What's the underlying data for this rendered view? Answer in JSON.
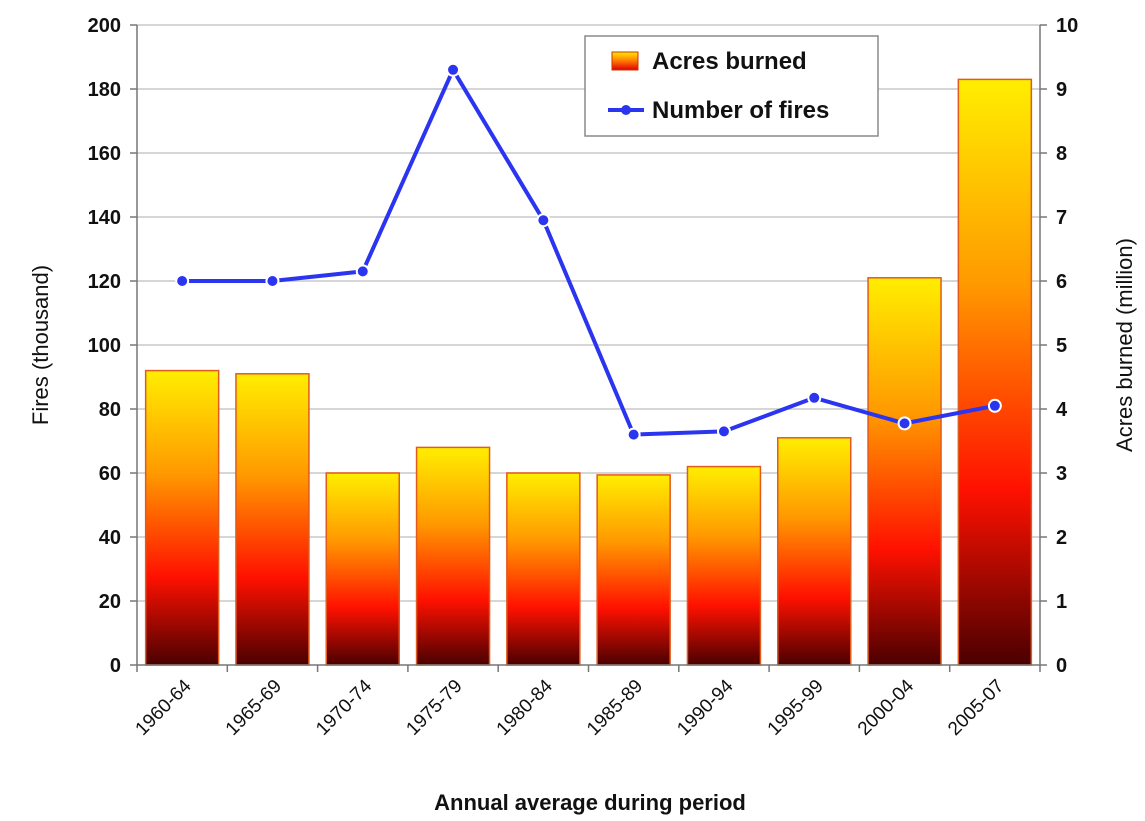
{
  "chart_data": {
    "type": "bar",
    "xlabel": "Annual average during period",
    "ylabel": "Fires (thousand)",
    "ylabel_right": "Acres burned (million)",
    "categories": [
      "1960-64",
      "1965-69",
      "1970-74",
      "1975-79",
      "1980-84",
      "1985-89",
      "1990-94",
      "1995-99",
      "2000-04",
      "2005-07"
    ],
    "ylim": [
      0,
      200
    ],
    "ylim_right": [
      0,
      10
    ],
    "yticks": [
      "0",
      "20",
      "40",
      "60",
      "80",
      "100",
      "120",
      "140",
      "160",
      "180",
      "200"
    ],
    "yticks_right": [
      "0",
      "1",
      "2",
      "3",
      "4",
      "5",
      "6",
      "7",
      "8",
      "9",
      "10"
    ],
    "grid": true,
    "legend_position": "top-right",
    "series": [
      {
        "name": "Acres burned",
        "type": "bar",
        "axis": "right",
        "values": [
          4.6,
          4.55,
          3.0,
          3.4,
          3.0,
          2.97,
          3.1,
          3.55,
          6.05,
          9.15
        ],
        "colors": [
          "#ffee00",
          "#ff9900",
          "#ff1100",
          "#4a0000"
        ]
      },
      {
        "name": "Number of fires",
        "type": "line",
        "axis": "left",
        "values": [
          120,
          120,
          123,
          186,
          139,
          72,
          73,
          83.5,
          75.5,
          81
        ],
        "color": "#2b35f0"
      }
    ]
  }
}
